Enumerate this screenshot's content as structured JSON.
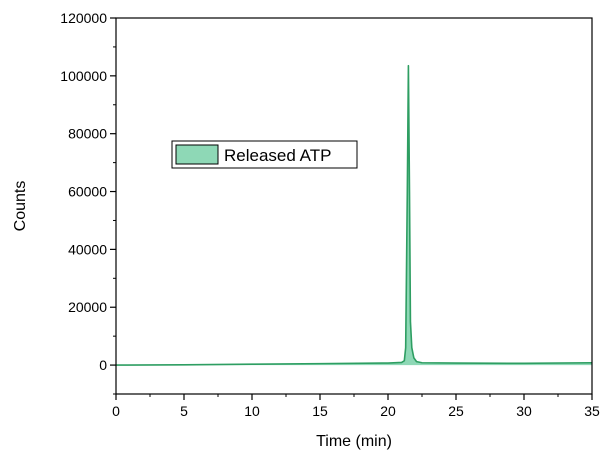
{
  "chart_data": {
    "type": "area",
    "title": "",
    "xlabel": "Time (min)",
    "ylabel": "Counts",
    "xlim": [
      0,
      35
    ],
    "ylim": [
      -10000,
      120000
    ],
    "x_ticks": [
      0,
      5,
      10,
      15,
      20,
      25,
      30,
      35
    ],
    "x_tick_labels": [
      "0",
      "5",
      "10",
      "15",
      "20",
      "25",
      "30",
      "35"
    ],
    "y_ticks": [
      0,
      20000,
      40000,
      60000,
      80000,
      100000,
      120000
    ],
    "y_tick_labels": [
      "0",
      "20000",
      "40000",
      "60000",
      "80000",
      "100000",
      "120000"
    ],
    "grid": false,
    "legend_position": "upper-left",
    "series": [
      {
        "name": "Released ATP",
        "fill_color": "#8ed8b6",
        "line_color": "#2e9e62",
        "x": [
          0,
          5,
          10,
          15,
          20,
          21.0,
          21.2,
          21.3,
          21.42,
          21.5,
          21.58,
          21.65,
          21.75,
          21.9,
          22.1,
          22.5,
          25,
          30,
          35
        ],
        "y": [
          0,
          100,
          300,
          500,
          700,
          900,
          1500,
          6000,
          60000,
          103500,
          60000,
          15000,
          6000,
          2500,
          1200,
          800,
          700,
          600,
          800
        ]
      }
    ]
  }
}
